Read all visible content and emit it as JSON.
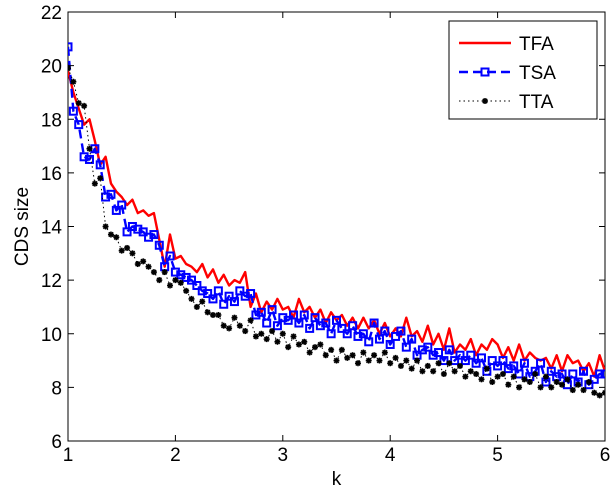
{
  "chart_data": {
    "type": "line",
    "title": "",
    "xlabel": "k",
    "ylabel": "CDS size",
    "xlim": [
      1,
      6
    ],
    "ylim": [
      6,
      22
    ],
    "xticks": [
      1,
      2,
      3,
      4,
      5,
      6
    ],
    "yticks": [
      6,
      8,
      10,
      12,
      14,
      16,
      18,
      20,
      22
    ],
    "grid": false,
    "legend_position": "top-right",
    "series": [
      {
        "name": "TFA",
        "color": "#ff0000",
        "style": "solid",
        "marker": "none",
        "x": [
          1.0,
          1.05,
          1.1,
          1.15,
          1.2,
          1.25,
          1.3,
          1.35,
          1.4,
          1.45,
          1.5,
          1.55,
          1.6,
          1.65,
          1.7,
          1.75,
          1.8,
          1.85,
          1.9,
          1.95,
          2.0,
          2.05,
          2.1,
          2.15,
          2.2,
          2.25,
          2.3,
          2.35,
          2.4,
          2.45,
          2.5,
          2.55,
          2.6,
          2.65,
          2.7,
          2.75,
          2.8,
          2.85,
          2.9,
          2.95,
          3.0,
          3.05,
          3.1,
          3.15,
          3.2,
          3.25,
          3.3,
          3.35,
          3.4,
          3.45,
          3.5,
          3.55,
          3.6,
          3.65,
          3.7,
          3.75,
          3.8,
          3.85,
          3.9,
          3.95,
          4.0,
          4.05,
          4.1,
          4.15,
          4.2,
          4.25,
          4.3,
          4.35,
          4.4,
          4.45,
          4.5,
          4.55,
          4.6,
          4.65,
          4.7,
          4.75,
          4.8,
          4.85,
          4.9,
          4.95,
          5.0,
          5.05,
          5.1,
          5.15,
          5.2,
          5.25,
          5.3,
          5.35,
          5.4,
          5.45,
          5.5,
          5.55,
          5.6,
          5.65,
          5.7,
          5.75,
          5.8,
          5.85,
          5.9,
          5.95,
          6.0
        ],
        "y": [
          19.8,
          19.0,
          18.4,
          17.8,
          18.0,
          17.2,
          16.3,
          16.6,
          15.6,
          15.3,
          15.1,
          14.8,
          15.0,
          14.5,
          14.6,
          14.4,
          14.5,
          13.5,
          12.5,
          13.7,
          12.8,
          12.9,
          12.6,
          12.5,
          12.3,
          12.6,
          12.1,
          12.4,
          11.9,
          12.2,
          11.8,
          12.0,
          11.9,
          12.3,
          11.0,
          11.5,
          10.8,
          11.2,
          10.9,
          11.3,
          10.9,
          11.0,
          10.6,
          11.3,
          10.8,
          11.0,
          10.6,
          10.9,
          10.4,
          10.8,
          10.5,
          10.7,
          10.3,
          10.6,
          10.2,
          10.6,
          10.2,
          10.5,
          10.0,
          10.4,
          9.9,
          10.2,
          9.9,
          10.6,
          9.9,
          10.1,
          9.7,
          10.3,
          9.6,
          10.0,
          9.4,
          10.2,
          9.3,
          9.6,
          9.4,
          9.8,
          9.2,
          9.6,
          9.4,
          9.8,
          9.6,
          9.1,
          9.5,
          9.0,
          9.6,
          9.0,
          9.3,
          9.1,
          9.0,
          9.1,
          8.7,
          9.2,
          8.6,
          9.2,
          8.9,
          9.0,
          8.6,
          8.9,
          8.4,
          9.2,
          8.6
        ]
      },
      {
        "name": "TSA",
        "color": "#0000ff",
        "style": "dashed",
        "marker": "square",
        "x": [
          1.0,
          1.05,
          1.1,
          1.15,
          1.2,
          1.25,
          1.3,
          1.35,
          1.4,
          1.45,
          1.5,
          1.55,
          1.6,
          1.65,
          1.7,
          1.75,
          1.8,
          1.85,
          1.9,
          1.95,
          2.0,
          2.05,
          2.1,
          2.15,
          2.2,
          2.25,
          2.3,
          2.35,
          2.4,
          2.45,
          2.5,
          2.55,
          2.6,
          2.65,
          2.7,
          2.75,
          2.8,
          2.85,
          2.9,
          2.95,
          3.0,
          3.05,
          3.1,
          3.15,
          3.2,
          3.25,
          3.3,
          3.35,
          3.4,
          3.45,
          3.5,
          3.55,
          3.6,
          3.65,
          3.7,
          3.75,
          3.8,
          3.85,
          3.9,
          3.95,
          4.0,
          4.05,
          4.1,
          4.15,
          4.2,
          4.25,
          4.3,
          4.35,
          4.4,
          4.45,
          4.5,
          4.55,
          4.6,
          4.65,
          4.7,
          4.75,
          4.8,
          4.85,
          4.9,
          4.95,
          5.0,
          5.05,
          5.1,
          5.15,
          5.2,
          5.25,
          5.3,
          5.35,
          5.4,
          5.45,
          5.5,
          5.55,
          5.6,
          5.65,
          5.7,
          5.75,
          5.8,
          5.85,
          5.9,
          5.95,
          6.0
        ],
        "y": [
          20.7,
          18.3,
          17.8,
          16.6,
          16.5,
          16.9,
          16.3,
          15.1,
          15.2,
          14.6,
          14.8,
          13.8,
          14.0,
          13.9,
          13.8,
          13.6,
          13.7,
          13.3,
          12.5,
          12.9,
          12.3,
          12.2,
          12.1,
          12.0,
          11.8,
          11.6,
          11.5,
          11.3,
          11.6,
          11.1,
          11.4,
          11.2,
          11.6,
          11.4,
          11.5,
          10.7,
          10.8,
          10.4,
          10.9,
          10.3,
          10.6,
          10.5,
          10.7,
          10.4,
          10.7,
          10.2,
          10.6,
          10.3,
          10.4,
          10.0,
          10.5,
          10.2,
          10.0,
          10.3,
          9.9,
          10.0,
          9.7,
          10.4,
          9.8,
          10.1,
          9.6,
          9.9,
          10.1,
          9.5,
          9.8,
          9.2,
          9.4,
          9.5,
          9.2,
          9.3,
          9.0,
          9.4,
          9.0,
          9.2,
          9.0,
          9.2,
          8.9,
          9.1,
          8.6,
          9.0,
          8.8,
          9.0,
          8.7,
          8.8,
          8.5,
          8.9,
          8.4,
          8.6,
          8.9,
          8.2,
          8.6,
          8.4,
          8.5,
          8.1,
          8.5,
          8.2,
          8.6,
          8.1,
          8.3,
          8.5,
          8.5
        ]
      },
      {
        "name": "TTA",
        "color": "#000000",
        "style": "dotted",
        "marker": "star",
        "x": [
          1.0,
          1.05,
          1.1,
          1.15,
          1.2,
          1.25,
          1.3,
          1.35,
          1.4,
          1.45,
          1.5,
          1.55,
          1.6,
          1.65,
          1.7,
          1.75,
          1.8,
          1.85,
          1.9,
          1.95,
          2.0,
          2.05,
          2.1,
          2.15,
          2.2,
          2.25,
          2.3,
          2.35,
          2.4,
          2.45,
          2.5,
          2.55,
          2.6,
          2.65,
          2.7,
          2.75,
          2.8,
          2.85,
          2.9,
          2.95,
          3.0,
          3.05,
          3.1,
          3.15,
          3.2,
          3.25,
          3.3,
          3.35,
          3.4,
          3.45,
          3.5,
          3.55,
          3.6,
          3.65,
          3.7,
          3.75,
          3.8,
          3.85,
          3.9,
          3.95,
          4.0,
          4.05,
          4.1,
          4.15,
          4.2,
          4.25,
          4.3,
          4.35,
          4.4,
          4.45,
          4.5,
          4.55,
          4.6,
          4.65,
          4.7,
          4.75,
          4.8,
          4.85,
          4.9,
          4.95,
          5.0,
          5.05,
          5.1,
          5.15,
          5.2,
          5.25,
          5.3,
          5.35,
          5.4,
          5.45,
          5.5,
          5.55,
          5.6,
          5.65,
          5.7,
          5.75,
          5.8,
          5.85,
          5.9,
          5.95,
          6.0
        ],
        "y": [
          19.9,
          19.4,
          18.6,
          18.5,
          16.9,
          15.6,
          15.8,
          14.0,
          13.7,
          13.6,
          13.1,
          13.2,
          13.0,
          12.6,
          12.7,
          12.5,
          12.3,
          12.0,
          12.3,
          11.8,
          12.0,
          11.9,
          11.6,
          11.3,
          11.0,
          11.2,
          10.8,
          10.7,
          10.7,
          10.3,
          10.2,
          10.6,
          10.3,
          10.1,
          10.5,
          9.9,
          10.0,
          9.8,
          10.1,
          9.7,
          10.0,
          9.5,
          9.9,
          9.6,
          9.7,
          9.3,
          9.5,
          9.6,
          9.2,
          9.4,
          9.0,
          9.4,
          9.1,
          9.2,
          8.9,
          9.3,
          9.0,
          9.2,
          9.0,
          9.3,
          8.9,
          9.1,
          8.8,
          9.0,
          8.7,
          9.0,
          8.6,
          8.8,
          8.6,
          8.9,
          8.5,
          8.9,
          8.6,
          8.8,
          8.4,
          8.6,
          8.5,
          8.3,
          8.7,
          8.2,
          8.4,
          8.5,
          8.1,
          8.4,
          8.0,
          8.3,
          8.2,
          8.5,
          8.0,
          8.4,
          8.0,
          8.2,
          8.1,
          8.3,
          7.9,
          8.1,
          7.9,
          8.2,
          7.8,
          7.7,
          7.8
        ]
      }
    ]
  }
}
